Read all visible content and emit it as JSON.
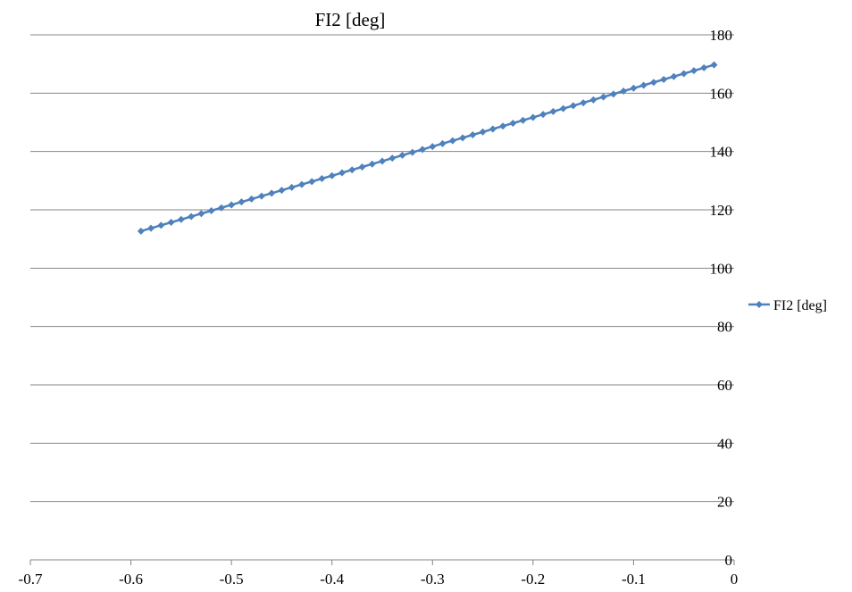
{
  "chart_data": {
    "type": "line",
    "title": "FI2 [deg]",
    "xlabel": "",
    "ylabel": "",
    "xlim": [
      -0.7,
      0
    ],
    "ylim": [
      0,
      180
    ],
    "x_ticks": [
      "-0.7",
      "-0.6",
      "-0.5",
      "-0.4",
      "-0.3",
      "-0.2",
      "-0.1",
      "0"
    ],
    "y_ticks": [
      "0",
      "20",
      "40",
      "60",
      "80",
      "100",
      "120",
      "140",
      "160",
      "180"
    ],
    "grid": "horizontal",
    "legend_position": "right",
    "series": [
      {
        "name": "FI2 [deg]",
        "color": "#4F81BD",
        "marker": "diamond",
        "x": [
          -0.59,
          -0.58,
          -0.57,
          -0.56,
          -0.55,
          -0.54,
          -0.53,
          -0.52,
          -0.51,
          -0.5,
          -0.49,
          -0.48,
          -0.47,
          -0.46,
          -0.45,
          -0.44,
          -0.43,
          -0.42,
          -0.41,
          -0.4,
          -0.39,
          -0.38,
          -0.37,
          -0.36,
          -0.35,
          -0.34,
          -0.33,
          -0.32,
          -0.31,
          -0.3,
          -0.29,
          -0.28,
          -0.27,
          -0.26,
          -0.25,
          -0.24,
          -0.23,
          -0.22,
          -0.21,
          -0.2,
          -0.19,
          -0.18,
          -0.17,
          -0.16,
          -0.15,
          -0.14,
          -0.13,
          -0.12,
          -0.11,
          -0.1,
          -0.09,
          -0.08,
          -0.07,
          -0.06,
          -0.05,
          -0.04,
          -0.03,
          -0.02
        ],
        "y": [
          112.7,
          113.7,
          114.7,
          115.7,
          116.7,
          117.7,
          118.7,
          119.7,
          120.7,
          121.7,
          122.7,
          123.7,
          124.7,
          125.7,
          126.7,
          127.7,
          128.7,
          129.7,
          130.7,
          131.7,
          132.7,
          133.7,
          134.7,
          135.7,
          136.7,
          137.7,
          138.7,
          139.7,
          140.7,
          141.7,
          142.7,
          143.7,
          144.7,
          145.7,
          146.7,
          147.7,
          148.7,
          149.7,
          150.7,
          151.7,
          152.7,
          153.7,
          154.7,
          155.7,
          156.7,
          157.7,
          158.7,
          159.7,
          160.7,
          161.7,
          162.7,
          163.7,
          164.7,
          165.7,
          166.7,
          167.7,
          168.7,
          169.7
        ]
      }
    ]
  }
}
